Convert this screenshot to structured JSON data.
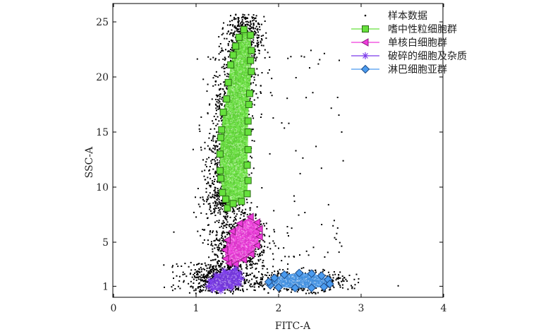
{
  "chart_data": {
    "type": "scatter",
    "title": "",
    "xlabel": "FITC-A",
    "ylabel": "SSC-A",
    "xlim": [
      0,
      4
    ],
    "ylim": [
      0,
      25.8
    ],
    "xticks": [
      0,
      1,
      2,
      3,
      4
    ],
    "yticks": [
      1,
      5,
      10,
      15,
      20,
      25
    ],
    "grid": false,
    "legend_position": "top-right",
    "legend": [
      {
        "label": "样本数据",
        "marker": "dot",
        "color": "#000000"
      },
      {
        "label": "嗜中性粒细胞群",
        "marker": "square",
        "color": "#66e03c"
      },
      {
        "label": "单核白细胞群",
        "marker": "triangle-left",
        "color": "#ef3bdc"
      },
      {
        "label": "破碎的细胞及杂质",
        "marker": "asterisk",
        "color": "#7c3bea"
      },
      {
        "label": "淋巴细胞亚群",
        "marker": "diamond",
        "color": "#4a9bef"
      }
    ],
    "series": [
      {
        "name": "嗜中性粒细胞群",
        "color": "#66e03c",
        "marker": "square",
        "boundary": [
          [
            1.58,
            24.3
          ],
          [
            1.52,
            23.6
          ],
          [
            1.48,
            22.8
          ],
          [
            1.45,
            22.0
          ],
          [
            1.42,
            21.1
          ],
          [
            1.39,
            19.5
          ],
          [
            1.37,
            18.0
          ],
          [
            1.33,
            16.8
          ],
          [
            1.31,
            15.2
          ],
          [
            1.3,
            14.5
          ],
          [
            1.29,
            13.0
          ],
          [
            1.29,
            11.5
          ],
          [
            1.3,
            10.8
          ],
          [
            1.32,
            9.5
          ],
          [
            1.36,
            8.9
          ],
          [
            1.38,
            8.1
          ],
          [
            1.45,
            8.5
          ],
          [
            1.55,
            8.7
          ],
          [
            1.62,
            9.4
          ],
          [
            1.63,
            10.6
          ],
          [
            1.62,
            12.0
          ],
          [
            1.63,
            13.4
          ],
          [
            1.63,
            15.0
          ],
          [
            1.63,
            16.0
          ],
          [
            1.64,
            17.5
          ],
          [
            1.65,
            18.5
          ],
          [
            1.67,
            20.5
          ],
          [
            1.66,
            21.5
          ],
          [
            1.67,
            22.4
          ],
          [
            1.66,
            23.8
          ]
        ]
      },
      {
        "name": "单核白细胞群",
        "color": "#ef3bdc",
        "marker": "triangle-left",
        "boundary": [
          [
            1.66,
            7.3
          ],
          [
            1.74,
            6.8
          ],
          [
            1.77,
            6.2
          ],
          [
            1.77,
            5.5
          ],
          [
            1.74,
            4.7
          ],
          [
            1.67,
            3.9
          ],
          [
            1.58,
            3.4
          ],
          [
            1.48,
            3.0
          ],
          [
            1.4,
            3.1
          ],
          [
            1.36,
            3.5
          ],
          [
            1.35,
            4.3
          ],
          [
            1.38,
            5.2
          ],
          [
            1.44,
            6.0
          ],
          [
            1.53,
            6.7
          ]
        ]
      },
      {
        "name": "破碎的细胞及杂质",
        "color": "#7c3bea",
        "marker": "asterisk",
        "boundary": [
          [
            1.48,
            2.6
          ],
          [
            1.53,
            2.2
          ],
          [
            1.55,
            1.7
          ],
          [
            1.52,
            1.2
          ],
          [
            1.43,
            0.85
          ],
          [
            1.3,
            0.6
          ],
          [
            1.2,
            0.7
          ],
          [
            1.15,
            1.0
          ],
          [
            1.17,
            1.5
          ],
          [
            1.24,
            2.0
          ],
          [
            1.34,
            2.4
          ]
        ]
      },
      {
        "name": "淋巴细胞亚群",
        "color": "#4a9bef",
        "marker": "diamond",
        "boundary": [
          [
            2.25,
            2.2
          ],
          [
            2.4,
            2.15
          ],
          [
            2.52,
            1.95
          ],
          [
            2.6,
            1.6
          ],
          [
            2.62,
            1.2
          ],
          [
            2.55,
            0.95
          ],
          [
            2.4,
            0.85
          ],
          [
            2.2,
            0.85
          ],
          [
            2.0,
            0.9
          ],
          [
            1.9,
            1.1
          ],
          [
            1.88,
            1.4
          ],
          [
            1.95,
            1.75
          ],
          [
            2.07,
            2.05
          ]
        ]
      }
    ]
  }
}
